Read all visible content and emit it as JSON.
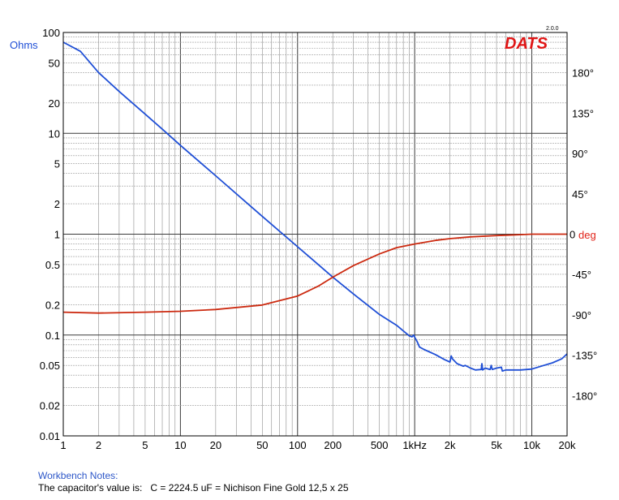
{
  "branding": {
    "logo": "DATS",
    "version": "2.0.0"
  },
  "notes": {
    "title": "Workbench Notes:",
    "text": "The capacitor's value is:   C = 2224.5 uF = Nichison Fine Gold 12,5 x 25"
  },
  "chart_data": {
    "type": "line",
    "title": "",
    "xlabel": "",
    "x_scale": "log",
    "xlim": [
      1,
      20000
    ],
    "x_ticks": [
      {
        "value": 1,
        "label": "1"
      },
      {
        "value": 2,
        "label": "2"
      },
      {
        "value": 5,
        "label": "5"
      },
      {
        "value": 10,
        "label": "10"
      },
      {
        "value": 20,
        "label": "20"
      },
      {
        "value": 50,
        "label": "50"
      },
      {
        "value": 100,
        "label": "100"
      },
      {
        "value": 200,
        "label": "200"
      },
      {
        "value": 500,
        "label": "500"
      },
      {
        "value": 1000,
        "label": "1kHz"
      },
      {
        "value": 2000,
        "label": "2k"
      },
      {
        "value": 5000,
        "label": "5k"
      },
      {
        "value": 10000,
        "label": "10k"
      },
      {
        "value": 20000,
        "label": "20k"
      }
    ],
    "y_left": {
      "label": "Ohms",
      "scale": "log",
      "lim": [
        0.01,
        100
      ],
      "ticks": [
        {
          "value": 100,
          "label": "100"
        },
        {
          "value": 50,
          "label": "50"
        },
        {
          "value": 20,
          "label": "20"
        },
        {
          "value": 10,
          "label": "10"
        },
        {
          "value": 5,
          "label": "5"
        },
        {
          "value": 2,
          "label": "2"
        },
        {
          "value": 1,
          "label": "1"
        },
        {
          "value": 0.5,
          "label": "0.5"
        },
        {
          "value": 0.2,
          "label": "0.2"
        },
        {
          "value": 0.1,
          "label": "0.1"
        },
        {
          "value": 0.05,
          "label": "0.05"
        },
        {
          "value": 0.02,
          "label": "0.02"
        },
        {
          "value": 0.01,
          "label": "0.01"
        }
      ]
    },
    "y_right": {
      "label": "deg",
      "scale": "linear",
      "lim": [
        -225,
        225
      ],
      "ticks": [
        {
          "value": 180,
          "label": "180°"
        },
        {
          "value": 135,
          "label": "135°"
        },
        {
          "value": 90,
          "label": "90°"
        },
        {
          "value": 45,
          "label": "45°"
        },
        {
          "value": 0,
          "label": "0"
        },
        {
          "value": -45,
          "label": "-45°"
        },
        {
          "value": -90,
          "label": "-90°"
        },
        {
          "value": -135,
          "label": "-135°"
        },
        {
          "value": -180,
          "label": "-180°"
        }
      ]
    },
    "grid": true,
    "series": [
      {
        "axis": "left",
        "color": "#1f4fd6",
        "points": [
          [
            1,
            80
          ],
          [
            1.4,
            65
          ],
          [
            2,
            40
          ],
          [
            3,
            26
          ],
          [
            5,
            15.5
          ],
          [
            7,
            11
          ],
          [
            10,
            7.6
          ],
          [
            20,
            3.8
          ],
          [
            50,
            1.5
          ],
          [
            100,
            0.75
          ],
          [
            200,
            0.375
          ],
          [
            300,
            0.255
          ],
          [
            500,
            0.16
          ],
          [
            700,
            0.125
          ],
          [
            900,
            0.098
          ],
          [
            950,
            0.096
          ],
          [
            980,
            0.1
          ],
          [
            1000,
            0.095
          ],
          [
            1050,
            0.086
          ],
          [
            1100,
            0.076
          ],
          [
            1200,
            0.072
          ],
          [
            1500,
            0.064
          ],
          [
            1800,
            0.057
          ],
          [
            2000,
            0.054
          ],
          [
            2050,
            0.062
          ],
          [
            2100,
            0.058
          ],
          [
            2300,
            0.052
          ],
          [
            2600,
            0.049
          ],
          [
            2700,
            0.05
          ],
          [
            3000,
            0.047
          ],
          [
            3300,
            0.045
          ],
          [
            3700,
            0.0455
          ],
          [
            3750,
            0.052
          ],
          [
            3800,
            0.045
          ],
          [
            4000,
            0.047
          ],
          [
            4400,
            0.0455
          ],
          [
            4500,
            0.05
          ],
          [
            4600,
            0.0455
          ],
          [
            5000,
            0.047
          ],
          [
            5500,
            0.048
          ],
          [
            5600,
            0.044
          ],
          [
            6000,
            0.045
          ],
          [
            7000,
            0.045
          ],
          [
            8000,
            0.045
          ],
          [
            10000,
            0.046
          ],
          [
            12000,
            0.049
          ],
          [
            15000,
            0.053
          ],
          [
            18000,
            0.058
          ],
          [
            20000,
            0.065
          ]
        ]
      },
      {
        "axis": "right",
        "color": "#cc2a10",
        "points": [
          [
            1,
            -87
          ],
          [
            2,
            -88
          ],
          [
            5,
            -87
          ],
          [
            10,
            -86
          ],
          [
            20,
            -84
          ],
          [
            50,
            -79
          ],
          [
            100,
            -69
          ],
          [
            150,
            -58
          ],
          [
            200,
            -48
          ],
          [
            300,
            -35
          ],
          [
            500,
            -22
          ],
          [
            700,
            -15
          ],
          [
            1000,
            -11
          ],
          [
            1500,
            -7
          ],
          [
            2000,
            -5
          ],
          [
            3000,
            -3
          ],
          [
            5000,
            -1.5
          ],
          [
            8000,
            -0.5
          ],
          [
            10000,
            0
          ],
          [
            20000,
            0
          ]
        ]
      }
    ]
  }
}
